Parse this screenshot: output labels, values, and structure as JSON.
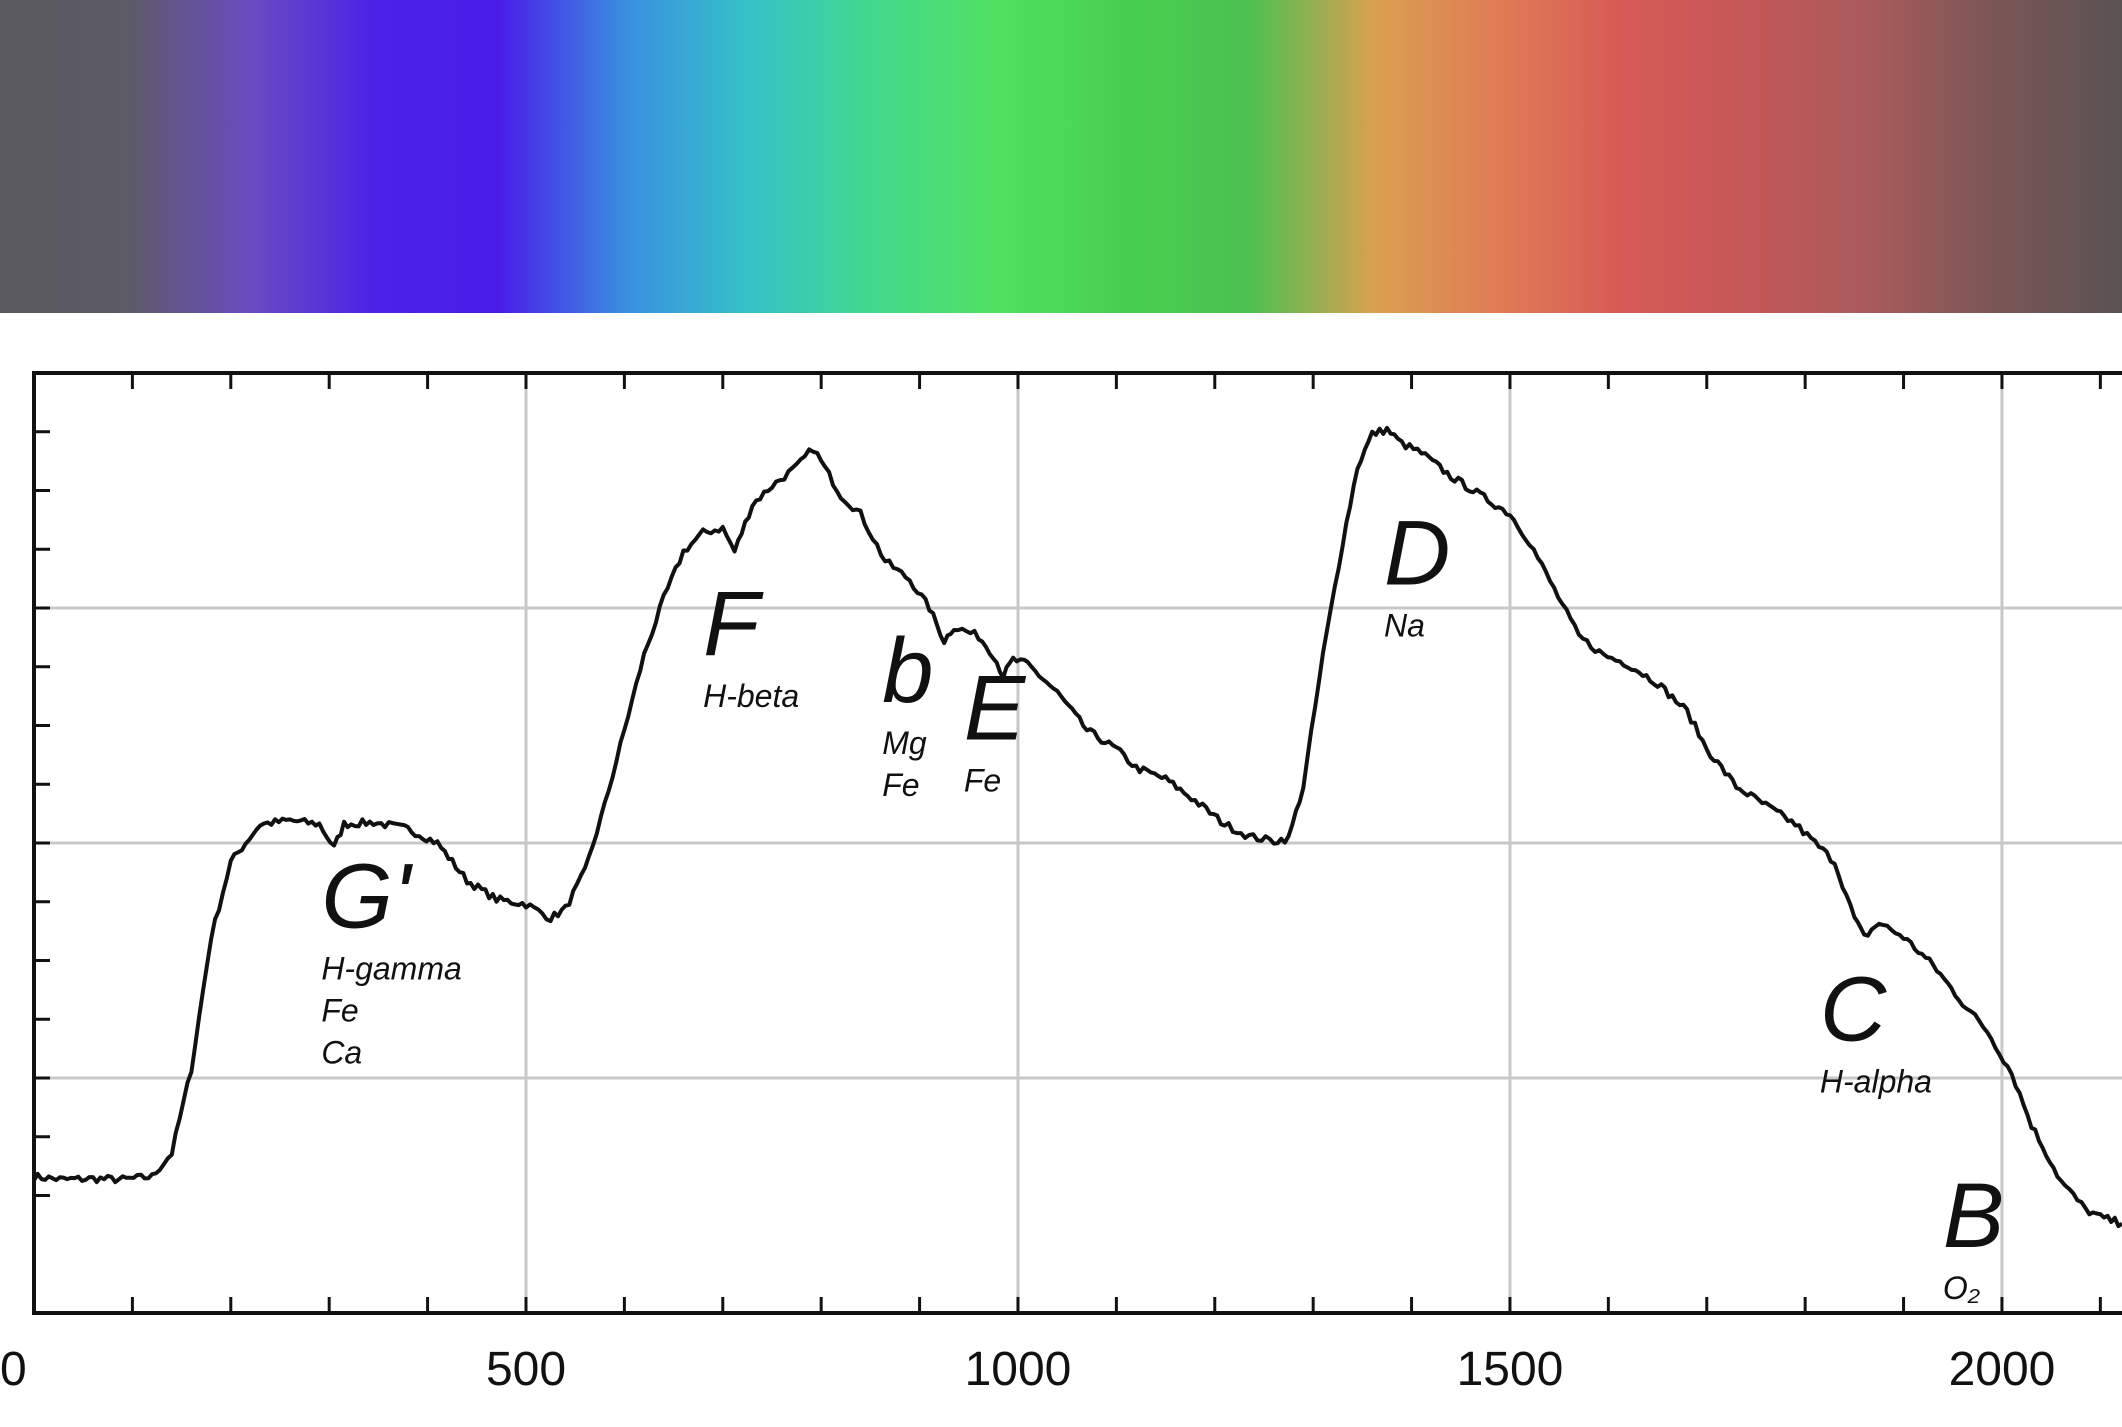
{
  "spectrum_colors": [
    "#5a5a5e",
    "#5c5b66",
    "#6a4cc0",
    "#4c22e6",
    "#4a1de8",
    "#3a8ee0",
    "#35c2c8",
    "#43d98c",
    "#50e060",
    "#47d050",
    "#4cc050",
    "#d8a050",
    "#e07c55",
    "#d65a55",
    "#c45858",
    "#a85a5a",
    "#7a5656",
    "#5a5252"
  ],
  "colors": {
    "curve": "#111111",
    "grid": "#c8c8c8",
    "axis": "#111111"
  },
  "chart_data": {
    "type": "line",
    "xlim": [
      0,
      2122
    ],
    "ylim": [
      0,
      1
    ],
    "grid": true,
    "x_ticks": [
      "0",
      "500",
      "1000",
      "1500",
      "2000"
    ],
    "series": [
      {
        "points": [
          [
            0,
            0.145
          ],
          [
            30,
            0.142
          ],
          [
            60,
            0.143
          ],
          [
            90,
            0.142
          ],
          [
            120,
            0.145
          ],
          [
            140,
            0.17
          ],
          [
            160,
            0.26
          ],
          [
            180,
            0.4
          ],
          [
            200,
            0.48
          ],
          [
            230,
            0.52
          ],
          [
            260,
            0.524
          ],
          [
            290,
            0.52
          ],
          [
            305,
            0.495
          ],
          [
            315,
            0.52
          ],
          [
            345,
            0.522
          ],
          [
            380,
            0.515
          ],
          [
            410,
            0.5
          ],
          [
            440,
            0.46
          ],
          [
            470,
            0.44
          ],
          [
            500,
            0.435
          ],
          [
            525,
            0.42
          ],
          [
            540,
            0.43
          ],
          [
            560,
            0.47
          ],
          [
            580,
            0.54
          ],
          [
            600,
            0.62
          ],
          [
            620,
            0.7
          ],
          [
            640,
            0.76
          ],
          [
            660,
            0.81
          ],
          [
            680,
            0.83
          ],
          [
            700,
            0.835
          ],
          [
            712,
            0.81
          ],
          [
            730,
            0.86
          ],
          [
            750,
            0.88
          ],
          [
            775,
            0.9
          ],
          [
            792,
            0.92
          ],
          [
            820,
            0.87
          ],
          [
            840,
            0.85
          ],
          [
            865,
            0.8
          ],
          [
            890,
            0.78
          ],
          [
            910,
            0.75
          ],
          [
            925,
            0.715
          ],
          [
            935,
            0.73
          ],
          [
            960,
            0.72
          ],
          [
            975,
            0.7
          ],
          [
            985,
            0.678
          ],
          [
            995,
            0.695
          ],
          [
            1010,
            0.69
          ],
          [
            1040,
            0.66
          ],
          [
            1070,
            0.62
          ],
          [
            1100,
            0.6
          ],
          [
            1120,
            0.58
          ],
          [
            1150,
            0.568
          ],
          [
            1180,
            0.545
          ],
          [
            1210,
            0.52
          ],
          [
            1235,
            0.507
          ],
          [
            1260,
            0.502
          ],
          [
            1275,
            0.505
          ],
          [
            1290,
            0.56
          ],
          [
            1310,
            0.7
          ],
          [
            1330,
            0.82
          ],
          [
            1345,
            0.9
          ],
          [
            1360,
            0.935
          ],
          [
            1375,
            0.94
          ],
          [
            1390,
            0.925
          ],
          [
            1410,
            0.915
          ],
          [
            1440,
            0.89
          ],
          [
            1470,
            0.87
          ],
          [
            1500,
            0.85
          ],
          [
            1520,
            0.82
          ],
          [
            1545,
            0.77
          ],
          [
            1570,
            0.72
          ],
          [
            1595,
            0.7
          ],
          [
            1620,
            0.69
          ],
          [
            1650,
            0.67
          ],
          [
            1680,
            0.64
          ],
          [
            1700,
            0.6
          ],
          [
            1730,
            0.56
          ],
          [
            1760,
            0.54
          ],
          [
            1790,
            0.52
          ],
          [
            1830,
            0.48
          ],
          [
            1850,
            0.42
          ],
          [
            1860,
            0.4
          ],
          [
            1875,
            0.415
          ],
          [
            1900,
            0.4
          ],
          [
            1930,
            0.37
          ],
          [
            1960,
            0.33
          ],
          [
            1985,
            0.3
          ],
          [
            2010,
            0.255
          ],
          [
            2030,
            0.2
          ],
          [
            2060,
            0.14
          ],
          [
            2085,
            0.11
          ],
          [
            2100,
            0.102
          ],
          [
            2122,
            0.095
          ]
        ]
      }
    ],
    "annotations": [
      {
        "letter": "G'",
        "elements": [
          "H-gamma",
          "Fe",
          "Ca"
        ],
        "x": 292,
        "y": 0.41
      },
      {
        "letter": "F",
        "elements": [
          "H-beta"
        ],
        "x": 680,
        "y": 0.7
      },
      {
        "letter": "b",
        "elements": [
          "Mg",
          "Fe"
        ],
        "x": 862,
        "y": 0.65
      },
      {
        "letter": "E",
        "elements": [
          "Fe"
        ],
        "x": 945,
        "y": 0.61
      },
      {
        "letter": "D",
        "elements": [
          "Na"
        ],
        "x": 1372,
        "y": 0.775
      },
      {
        "letter": "C",
        "elements": [
          "H-alpha"
        ],
        "x": 1815,
        "y": 0.29
      },
      {
        "letter": "B",
        "elements": [
          "O₂"
        ],
        "x": 1940,
        "y": 0.07
      }
    ]
  }
}
